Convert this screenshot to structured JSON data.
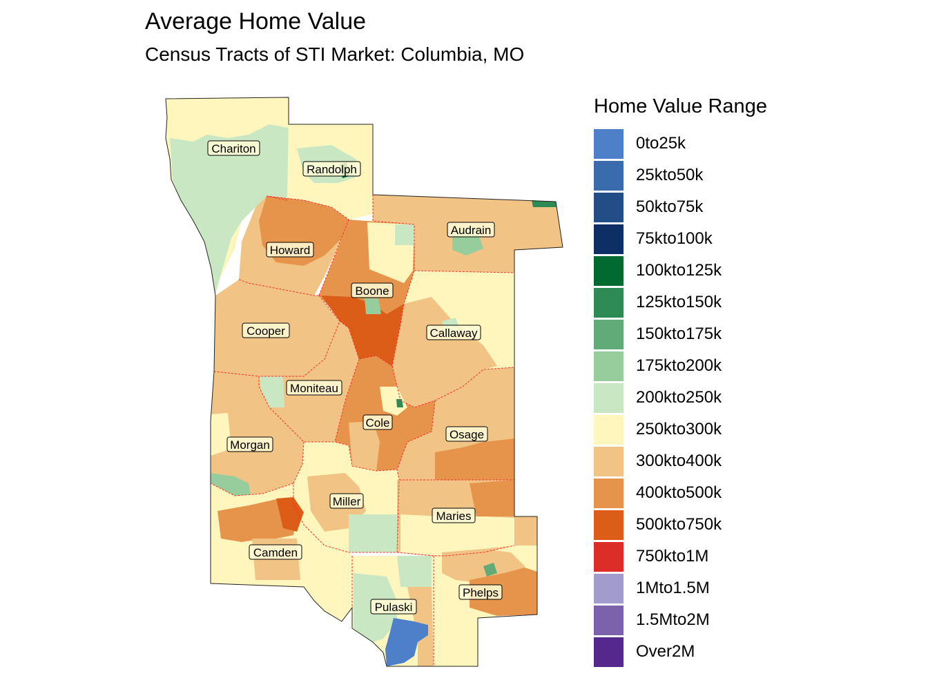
{
  "title": "Average Home Value",
  "subtitle": "Census Tracts of STI Market: Columbia, MO",
  "legend": {
    "title": "Home Value Range",
    "items": [
      {
        "label": "0to25k",
        "color": "#4e80c9"
      },
      {
        "label": "25kto50k",
        "color": "#3a6bad"
      },
      {
        "label": "50kto75k",
        "color": "#224d86"
      },
      {
        "label": "75kto100k",
        "color": "#0d2f66"
      },
      {
        "label": "100kto125k",
        "color": "#006a30"
      },
      {
        "label": "125kto150k",
        "color": "#2e8b55"
      },
      {
        "label": "150kto175k",
        "color": "#61ab78"
      },
      {
        "label": "175kto200k",
        "color": "#97cd9c"
      },
      {
        "label": "200kto250k",
        "color": "#c8e7c2"
      },
      {
        "label": "250kto300k",
        "color": "#fff6bd"
      },
      {
        "label": "300kto400k",
        "color": "#f1c384"
      },
      {
        "label": "400kto500k",
        "color": "#e6944b"
      },
      {
        "label": "500kto750k",
        "color": "#db5d17"
      },
      {
        "label": "750kto1M",
        "color": "#dd2d29"
      },
      {
        "label": "1Mto1.5M",
        "color": "#a19ccb"
      },
      {
        "label": "1.5Mto2M",
        "color": "#7c61ac"
      },
      {
        "label": "Over2M",
        "color": "#55288d"
      }
    ]
  },
  "counties": [
    {
      "name": "Chariton"
    },
    {
      "name": "Randolph"
    },
    {
      "name": "Audrain"
    },
    {
      "name": "Howard"
    },
    {
      "name": "Boone"
    },
    {
      "name": "Cooper"
    },
    {
      "name": "Callaway"
    },
    {
      "name": "Moniteau"
    },
    {
      "name": "Cole"
    },
    {
      "name": "Osage"
    },
    {
      "name": "Morgan"
    },
    {
      "name": "Miller"
    },
    {
      "name": "Maries"
    },
    {
      "name": "Camden"
    },
    {
      "name": "Phelps"
    },
    {
      "name": "Pulaski"
    }
  ]
}
